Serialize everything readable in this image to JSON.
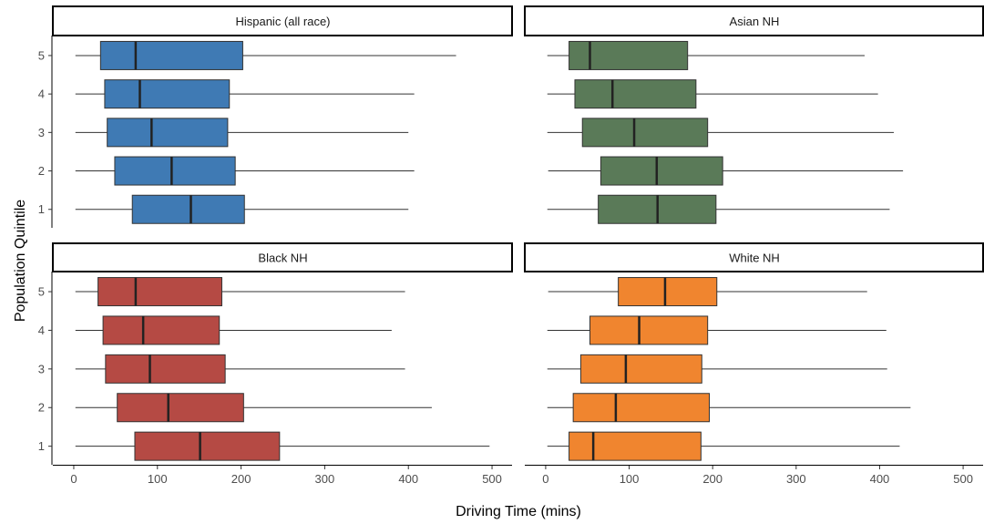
{
  "chart_data": {
    "type": "boxplot",
    "orientation": "horizontal",
    "xlabel": "Driving Time (mins)",
    "ylabel": "Population Quintile",
    "xlim": [
      -25,
      525
    ],
    "x_ticks": [
      0,
      100,
      200,
      300,
      400,
      500
    ],
    "categories": [
      "1",
      "2",
      "3",
      "4",
      "5"
    ],
    "grid": false,
    "legend": "none",
    "panels": [
      {
        "title": "Hispanic (all race)",
        "color": "#3f7ab4",
        "boxes": [
          {
            "quintile": "1",
            "whisker_low": 2,
            "q1": 70,
            "median": 140,
            "q3": 204,
            "whisker_high": 400
          },
          {
            "quintile": "2",
            "whisker_low": 2,
            "q1": 49,
            "median": 117,
            "q3": 193,
            "whisker_high": 407
          },
          {
            "quintile": "3",
            "whisker_low": 2,
            "q1": 40,
            "median": 93,
            "q3": 184,
            "whisker_high": 400
          },
          {
            "quintile": "4",
            "whisker_low": 2,
            "q1": 37,
            "median": 79,
            "q3": 186,
            "whisker_high": 407
          },
          {
            "quintile": "5",
            "whisker_low": 2,
            "q1": 32,
            "median": 74,
            "q3": 202,
            "whisker_high": 457
          }
        ]
      },
      {
        "title": "Asian NH",
        "color": "#5a7a58",
        "boxes": [
          {
            "quintile": "1",
            "whisker_low": 2,
            "q1": 63,
            "median": 134,
            "q3": 204,
            "whisker_high": 412
          },
          {
            "quintile": "2",
            "whisker_low": 3,
            "q1": 66,
            "median": 133,
            "q3": 212,
            "whisker_high": 428
          },
          {
            "quintile": "3",
            "whisker_low": 2,
            "q1": 44,
            "median": 106,
            "q3": 194,
            "whisker_high": 417
          },
          {
            "quintile": "4",
            "whisker_low": 2,
            "q1": 35,
            "median": 80,
            "q3": 180,
            "whisker_high": 398
          },
          {
            "quintile": "5",
            "whisker_low": 2,
            "q1": 28,
            "median": 53,
            "q3": 170,
            "whisker_high": 382
          }
        ]
      },
      {
        "title": "Black NH",
        "color": "#b54a44",
        "boxes": [
          {
            "quintile": "1",
            "whisker_low": 2,
            "q1": 73,
            "median": 151,
            "q3": 246,
            "whisker_high": 497
          },
          {
            "quintile": "2",
            "whisker_low": 2,
            "q1": 52,
            "median": 113,
            "q3": 203,
            "whisker_high": 428
          },
          {
            "quintile": "3",
            "whisker_low": 2,
            "q1": 38,
            "median": 91,
            "q3": 181,
            "whisker_high": 396
          },
          {
            "quintile": "4",
            "whisker_low": 2,
            "q1": 35,
            "median": 83,
            "q3": 174,
            "whisker_high": 380
          },
          {
            "quintile": "5",
            "whisker_low": 2,
            "q1": 29,
            "median": 74,
            "q3": 177,
            "whisker_high": 396
          }
        ]
      },
      {
        "title": "White NH",
        "color": "#f0852f",
        "boxes": [
          {
            "quintile": "1",
            "whisker_low": 2,
            "q1": 28,
            "median": 57,
            "q3": 186,
            "whisker_high": 424
          },
          {
            "quintile": "2",
            "whisker_low": 2,
            "q1": 33,
            "median": 84,
            "q3": 196,
            "whisker_high": 437
          },
          {
            "quintile": "3",
            "whisker_low": 2,
            "q1": 42,
            "median": 96,
            "q3": 187,
            "whisker_high": 409
          },
          {
            "quintile": "4",
            "whisker_low": 2,
            "q1": 53,
            "median": 112,
            "q3": 194,
            "whisker_high": 408
          },
          {
            "quintile": "5",
            "whisker_low": 3,
            "q1": 87,
            "median": 143,
            "q3": 205,
            "whisker_high": 385
          }
        ]
      }
    ]
  }
}
